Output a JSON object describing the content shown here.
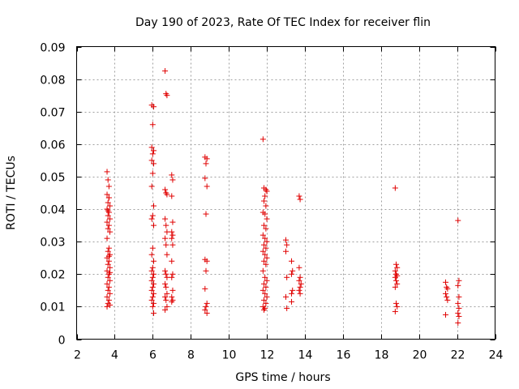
{
  "chart_data": {
    "type": "scatter",
    "title": "Day 190 of 2023, Rate Of TEC Index for receiver flin",
    "xlabel": "GPS time / hours",
    "ylabel": "ROTI / TECUs",
    "xlim": [
      2,
      24
    ],
    "ylim": [
      0,
      0.09
    ],
    "xticks": [
      "2",
      "4",
      "6",
      "8",
      "10",
      "12",
      "14",
      "16",
      "18",
      "20",
      "22",
      "24"
    ],
    "yticks": [
      "0",
      "0.01",
      "0.02",
      "0.03",
      "0.04",
      "0.05",
      "0.06",
      "0.07",
      "0.08",
      "0.09"
    ],
    "grid": true,
    "marker": "+",
    "color": "#e00000",
    "series": [
      {
        "values": [
          [
            3.6,
            0.0515
          ],
          [
            3.65,
            0.049
          ],
          [
            3.7,
            0.047
          ],
          [
            3.6,
            0.0445
          ],
          [
            3.7,
            0.0435
          ],
          [
            3.65,
            0.042
          ],
          [
            3.75,
            0.041
          ],
          [
            3.6,
            0.04
          ],
          [
            3.7,
            0.039
          ],
          [
            3.65,
            0.038
          ],
          [
            3.75,
            0.037
          ],
          [
            3.6,
            0.036
          ],
          [
            3.7,
            0.035
          ],
          [
            3.65,
            0.034
          ],
          [
            3.75,
            0.033
          ],
          [
            3.6,
            0.031
          ],
          [
            3.7,
            0.028
          ],
          [
            3.65,
            0.027
          ],
          [
            3.75,
            0.026
          ],
          [
            3.6,
            0.025
          ],
          [
            3.7,
            0.024
          ],
          [
            3.65,
            0.023
          ],
          [
            3.75,
            0.022
          ],
          [
            3.6,
            0.021
          ],
          [
            3.7,
            0.02
          ],
          [
            3.65,
            0.019
          ],
          [
            3.75,
            0.018
          ],
          [
            3.6,
            0.017
          ],
          [
            3.7,
            0.016
          ],
          [
            3.65,
            0.015
          ],
          [
            3.75,
            0.014
          ],
          [
            3.6,
            0.013
          ],
          [
            3.7,
            0.012
          ],
          [
            3.65,
            0.011
          ],
          [
            3.75,
            0.0105
          ],
          [
            3.6,
            0.01
          ],
          [
            3.7,
            0.0435
          ],
          [
            3.65,
            0.0395
          ],
          [
            3.7,
            0.0255
          ],
          [
            3.75,
            0.0205
          ],
          [
            5.95,
            0.072
          ],
          [
            6.05,
            0.0715
          ],
          [
            6.0,
            0.066
          ],
          [
            5.95,
            0.059
          ],
          [
            6.05,
            0.058
          ],
          [
            6.0,
            0.057
          ],
          [
            5.95,
            0.055
          ],
          [
            6.05,
            0.054
          ],
          [
            6.0,
            0.051
          ],
          [
            5.95,
            0.047
          ],
          [
            6.05,
            0.041
          ],
          [
            6.0,
            0.038
          ],
          [
            5.95,
            0.037
          ],
          [
            6.05,
            0.035
          ],
          [
            6.0,
            0.028
          ],
          [
            5.95,
            0.026
          ],
          [
            6.05,
            0.024
          ],
          [
            6.0,
            0.022
          ],
          [
            5.95,
            0.021
          ],
          [
            6.05,
            0.02
          ],
          [
            6.0,
            0.019
          ],
          [
            5.95,
            0.018
          ],
          [
            6.05,
            0.017
          ],
          [
            6.0,
            0.016
          ],
          [
            5.95,
            0.015
          ],
          [
            6.05,
            0.014
          ],
          [
            6.0,
            0.013
          ],
          [
            5.95,
            0.012
          ],
          [
            6.05,
            0.011
          ],
          [
            6.0,
            0.01
          ],
          [
            6.05,
            0.008
          ],
          [
            6.65,
            0.0825
          ],
          [
            6.7,
            0.0755
          ],
          [
            6.75,
            0.075
          ],
          [
            6.65,
            0.046
          ],
          [
            6.7,
            0.045
          ],
          [
            6.75,
            0.0445
          ],
          [
            6.65,
            0.037
          ],
          [
            6.7,
            0.035
          ],
          [
            6.75,
            0.033
          ],
          [
            6.65,
            0.031
          ],
          [
            6.7,
            0.029
          ],
          [
            6.75,
            0.026
          ],
          [
            6.65,
            0.021
          ],
          [
            6.7,
            0.02
          ],
          [
            6.75,
            0.019
          ],
          [
            6.65,
            0.017
          ],
          [
            6.7,
            0.016
          ],
          [
            6.75,
            0.014
          ],
          [
            6.65,
            0.013
          ],
          [
            6.7,
            0.012
          ],
          [
            6.75,
            0.01
          ],
          [
            6.65,
            0.009
          ],
          [
            7.0,
            0.0505
          ],
          [
            7.05,
            0.049
          ],
          [
            7.0,
            0.044
          ],
          [
            7.05,
            0.036
          ],
          [
            7.0,
            0.033
          ],
          [
            7.05,
            0.032
          ],
          [
            7.0,
            0.031
          ],
          [
            7.05,
            0.029
          ],
          [
            7.0,
            0.024
          ],
          [
            7.05,
            0.02
          ],
          [
            7.0,
            0.019
          ],
          [
            7.05,
            0.015
          ],
          [
            7.0,
            0.013
          ],
          [
            7.05,
            0.012
          ],
          [
            7.0,
            0.0115
          ],
          [
            8.75,
            0.056
          ],
          [
            8.85,
            0.0555
          ],
          [
            8.8,
            0.054
          ],
          [
            8.75,
            0.0495
          ],
          [
            8.85,
            0.047
          ],
          [
            8.8,
            0.0385
          ],
          [
            8.75,
            0.0245
          ],
          [
            8.85,
            0.024
          ],
          [
            8.8,
            0.021
          ],
          [
            8.75,
            0.0155
          ],
          [
            8.85,
            0.011
          ],
          [
            8.8,
            0.01
          ],
          [
            8.75,
            0.009
          ],
          [
            8.85,
            0.008
          ],
          [
            11.8,
            0.0615
          ],
          [
            11.85,
            0.0465
          ],
          [
            11.95,
            0.046
          ],
          [
            12.0,
            0.0455
          ],
          [
            11.9,
            0.044
          ],
          [
            11.85,
            0.0425
          ],
          [
            11.95,
            0.041
          ],
          [
            11.8,
            0.039
          ],
          [
            11.9,
            0.0385
          ],
          [
            12.0,
            0.037
          ],
          [
            11.85,
            0.035
          ],
          [
            11.95,
            0.034
          ],
          [
            11.8,
            0.032
          ],
          [
            11.9,
            0.031
          ],
          [
            12.0,
            0.03
          ],
          [
            11.85,
            0.029
          ],
          [
            11.95,
            0.028
          ],
          [
            11.8,
            0.027
          ],
          [
            11.9,
            0.026
          ],
          [
            12.0,
            0.025
          ],
          [
            11.85,
            0.024
          ],
          [
            11.95,
            0.023
          ],
          [
            11.8,
            0.021
          ],
          [
            11.9,
            0.019
          ],
          [
            12.0,
            0.018
          ],
          [
            11.85,
            0.017
          ],
          [
            11.95,
            0.016
          ],
          [
            11.8,
            0.015
          ],
          [
            11.9,
            0.014
          ],
          [
            12.0,
            0.013
          ],
          [
            11.85,
            0.012
          ],
          [
            11.95,
            0.011
          ],
          [
            11.8,
            0.01
          ],
          [
            11.9,
            0.0095
          ],
          [
            11.85,
            0.009
          ],
          [
            13.0,
            0.0305
          ],
          [
            13.05,
            0.029
          ],
          [
            13.0,
            0.027
          ],
          [
            13.3,
            0.024
          ],
          [
            13.35,
            0.021
          ],
          [
            13.3,
            0.02
          ],
          [
            13.05,
            0.019
          ],
          [
            13.35,
            0.015
          ],
          [
            13.3,
            0.014
          ],
          [
            13.0,
            0.013
          ],
          [
            13.3,
            0.0115
          ],
          [
            13.05,
            0.0095
          ],
          [
            13.7,
            0.044
          ],
          [
            13.75,
            0.043
          ],
          [
            13.7,
            0.022
          ],
          [
            13.75,
            0.019
          ],
          [
            13.7,
            0.018
          ],
          [
            13.8,
            0.017
          ],
          [
            13.75,
            0.016
          ],
          [
            13.7,
            0.015
          ],
          [
            13.75,
            0.014
          ],
          [
            18.75,
            0.0465
          ],
          [
            18.8,
            0.023
          ],
          [
            18.85,
            0.022
          ],
          [
            18.75,
            0.021
          ],
          [
            18.8,
            0.02
          ],
          [
            18.85,
            0.0195
          ],
          [
            18.75,
            0.019
          ],
          [
            18.8,
            0.018
          ],
          [
            18.85,
            0.017
          ],
          [
            18.75,
            0.016
          ],
          [
            18.8,
            0.011
          ],
          [
            18.85,
            0.01
          ],
          [
            18.75,
            0.0085
          ],
          [
            21.4,
            0.0175
          ],
          [
            21.45,
            0.016
          ],
          [
            21.5,
            0.0155
          ],
          [
            21.4,
            0.014
          ],
          [
            21.45,
            0.013
          ],
          [
            21.5,
            0.012
          ],
          [
            21.4,
            0.0075
          ],
          [
            22.05,
            0.0365
          ],
          [
            22.1,
            0.018
          ],
          [
            22.05,
            0.0165
          ],
          [
            22.1,
            0.013
          ],
          [
            22.05,
            0.011
          ],
          [
            22.1,
            0.0095
          ],
          [
            22.05,
            0.008
          ],
          [
            22.1,
            0.007
          ],
          [
            22.05,
            0.005
          ]
        ]
      }
    ]
  }
}
